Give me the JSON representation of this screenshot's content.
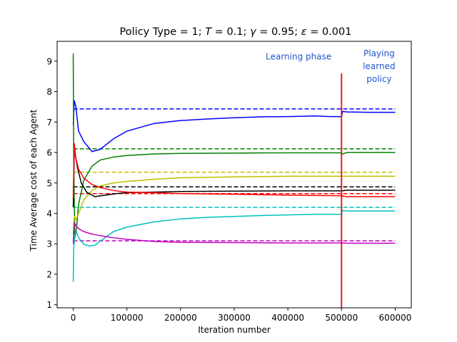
{
  "chart_data": {
    "type": "line",
    "title": "Policy Type = 1; T = 0.1; γ = 0.95; ε = 0.001",
    "title_parts": {
      "lead": "Policy Type = 1; ",
      "T_sym": "T",
      "T_val": " = 0.1; ",
      "gamma_sym": "γ",
      "gamma_val": " = 0.95; ",
      "eps_sym": "ε",
      "eps_val": " = 0.001"
    },
    "xlabel": "Iteration number",
    "ylabel": "Time Average cost of each Agent",
    "xlim": [
      -30000,
      630000
    ],
    "ylim": [
      0.9,
      9.65
    ],
    "xticks": [
      0,
      100000,
      200000,
      300000,
      400000,
      500000,
      600000
    ],
    "xtick_labels": [
      "0",
      "100000",
      "200000",
      "300000",
      "400000",
      "500000",
      "600000"
    ],
    "yticks": [
      1,
      2,
      3,
      4,
      5,
      6,
      7,
      8,
      9
    ],
    "ytick_labels": [
      "1",
      "2",
      "3",
      "4",
      "5",
      "6",
      "7",
      "8",
      "9"
    ],
    "grid": false,
    "annotations": [
      {
        "text": "Learning phase",
        "x": 420000,
        "y": 9.15,
        "color": "#2255cc"
      },
      {
        "text": "Playing",
        "x": 570000,
        "y": 9.25,
        "color": "#2255cc"
      },
      {
        "text": "learned",
        "x": 570000,
        "y": 8.83,
        "color": "#2255cc"
      },
      {
        "text": "policy",
        "x": 570000,
        "y": 8.41,
        "color": "#2255cc"
      }
    ],
    "phase_boundary": {
      "x": 500000,
      "color": "#ff0000"
    },
    "series": [
      {
        "color": "#0000ff",
        "target": 7.43,
        "x": [
          0,
          2000,
          5000,
          10000,
          20000,
          35000,
          50000,
          75000,
          100000,
          150000,
          200000,
          250000,
          300000,
          350000,
          400000,
          450000,
          480000,
          500000,
          502000,
          510000,
          550000,
          600000
        ],
        "y": [
          6.9,
          7.7,
          7.5,
          6.7,
          6.35,
          6.03,
          6.1,
          6.45,
          6.7,
          6.95,
          7.05,
          7.1,
          7.14,
          7.17,
          7.18,
          7.2,
          7.18,
          7.18,
          7.35,
          7.33,
          7.32,
          7.32
        ]
      },
      {
        "color": "#008000",
        "target": 6.12,
        "x": [
          0,
          1000,
          3000,
          6000,
          10000,
          20000,
          35000,
          50000,
          75000,
          100000,
          150000,
          200000,
          300000,
          400000,
          500000,
          502000,
          510000,
          550000,
          600000
        ],
        "y": [
          9.25,
          5.5,
          3.2,
          3.5,
          4.3,
          5.1,
          5.55,
          5.75,
          5.85,
          5.9,
          5.95,
          5.97,
          5.98,
          5.99,
          5.99,
          5.95,
          6.0,
          6.0,
          6.0
        ]
      },
      {
        "color": "#bfbf00",
        "target": 5.35,
        "x": [
          0,
          2000,
          5000,
          10000,
          20000,
          35000,
          50000,
          75000,
          100000,
          150000,
          200000,
          300000,
          400000,
          500000,
          510000,
          550000,
          600000
        ],
        "y": [
          3.3,
          3.9,
          3.8,
          4.0,
          4.45,
          4.75,
          4.9,
          5.0,
          5.05,
          5.12,
          5.17,
          5.2,
          5.22,
          5.22,
          5.22,
          5.22,
          5.22
        ]
      },
      {
        "color": "#000000",
        "target": 4.87,
        "x": [
          0,
          2000,
          4000,
          8000,
          15000,
          25000,
          40000,
          60000,
          80000,
          100000,
          150000,
          200000,
          300000,
          400000,
          500000,
          510000,
          550000,
          600000
        ],
        "y": [
          4.2,
          6.05,
          5.9,
          5.5,
          5.0,
          4.7,
          4.55,
          4.6,
          4.65,
          4.68,
          4.7,
          4.72,
          4.73,
          4.74,
          4.74,
          4.76,
          4.76,
          4.76
        ]
      },
      {
        "color": "#ff0000",
        "target": 4.65,
        "x": [
          0,
          2000,
          5000,
          10000,
          20000,
          35000,
          50000,
          75000,
          100000,
          150000,
          200000,
          300000,
          400000,
          500000,
          510000,
          550000,
          600000
        ],
        "y": [
          4.5,
          6.3,
          5.8,
          5.45,
          5.15,
          4.95,
          4.85,
          4.75,
          4.7,
          4.68,
          4.65,
          4.63,
          4.6,
          4.58,
          4.55,
          4.55,
          4.55
        ]
      },
      {
        "color": "#00bfbf",
        "target": 4.2,
        "x": [
          0,
          1000,
          3000,
          6000,
          10000,
          20000,
          30000,
          40000,
          55000,
          75000,
          100000,
          150000,
          200000,
          250000,
          300000,
          350000,
          400000,
          450000,
          480000,
          500000,
          502000,
          510000,
          550000,
          600000
        ],
        "y": [
          1.75,
          2.9,
          3.3,
          3.4,
          3.2,
          2.98,
          2.93,
          2.95,
          3.15,
          3.4,
          3.55,
          3.72,
          3.82,
          3.87,
          3.9,
          3.93,
          3.95,
          3.97,
          3.97,
          3.97,
          4.1,
          4.08,
          4.08,
          4.08
        ]
      },
      {
        "color": "#bf00bf",
        "target": 3.1,
        "x": [
          0,
          2000,
          5000,
          10000,
          20000,
          35000,
          50000,
          75000,
          100000,
          150000,
          200000,
          300000,
          400000,
          500000,
          510000,
          550000,
          600000
        ],
        "y": [
          3.0,
          3.7,
          3.6,
          3.5,
          3.4,
          3.32,
          3.27,
          3.2,
          3.15,
          3.08,
          3.05,
          3.04,
          3.03,
          3.03,
          3.02,
          3.02,
          3.02
        ]
      }
    ]
  }
}
